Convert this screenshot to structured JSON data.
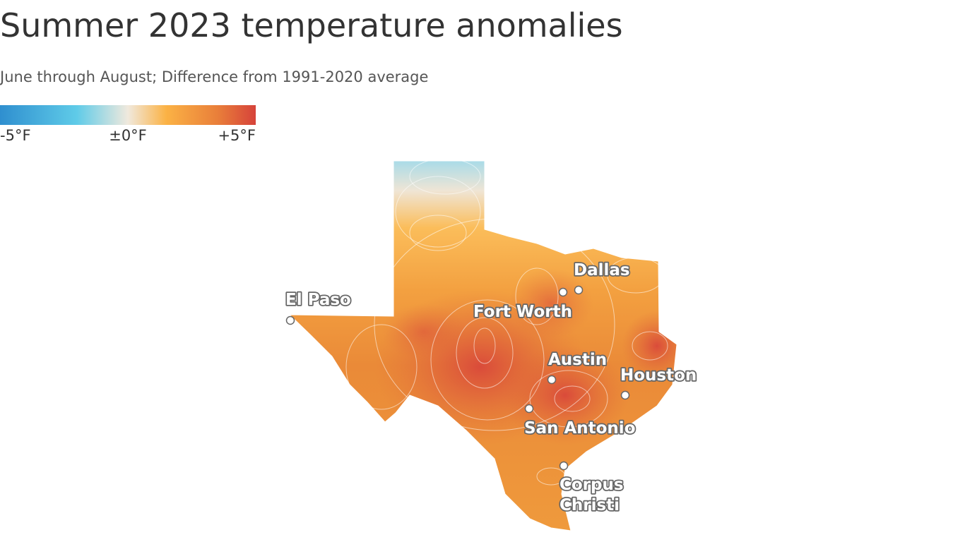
{
  "header": {
    "title": "Summer 2023 temperature anomalies",
    "subtitle": "June through August; Difference from 1991-2020 average"
  },
  "legend": {
    "labels": [
      "-5°F",
      "±0°F",
      "+5°F"
    ]
  },
  "cities": [
    {
      "lines": [
        "El Paso"
      ]
    },
    {
      "lines": [
        "Dallas"
      ]
    },
    {
      "lines": [
        "Fort Worth"
      ]
    },
    {
      "lines": [
        "Austin"
      ]
    },
    {
      "lines": [
        "Houston"
      ]
    },
    {
      "lines": [
        "San Antonio"
      ]
    },
    {
      "lines": [
        "Corpus",
        "Christi"
      ]
    }
  ]
}
